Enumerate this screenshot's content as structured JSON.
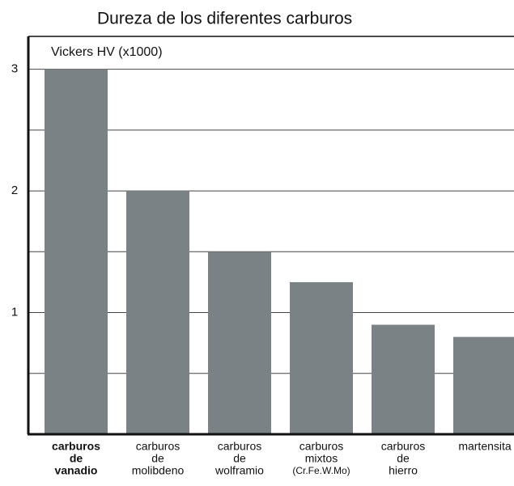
{
  "chart_data": {
    "type": "bar",
    "title": "Dureza de los diferentes carburos",
    "y_axis_label": "Vickers HV (x1000)",
    "categories": [
      [
        "carburos",
        "de",
        "vanadio"
      ],
      [
        "carburos",
        "de",
        "molibdeno"
      ],
      [
        "carburos",
        "de",
        "wolframio"
      ],
      [
        "carburos",
        "mixtos",
        "(Cr.Fe.W.Mo)"
      ],
      [
        "carburos",
        "de",
        "hierro"
      ],
      [
        "martensita"
      ]
    ],
    "values": [
      3.0,
      2.0,
      1.5,
      1.25,
      0.9,
      0.8
    ],
    "color": "#7b8285",
    "highlight_category": 0,
    "ylim": [
      0,
      3.27
    ],
    "yticks": [
      1,
      2,
      3
    ],
    "minor_yticks": [
      0.5,
      1.5,
      2.5
    ],
    "grid": true
  }
}
